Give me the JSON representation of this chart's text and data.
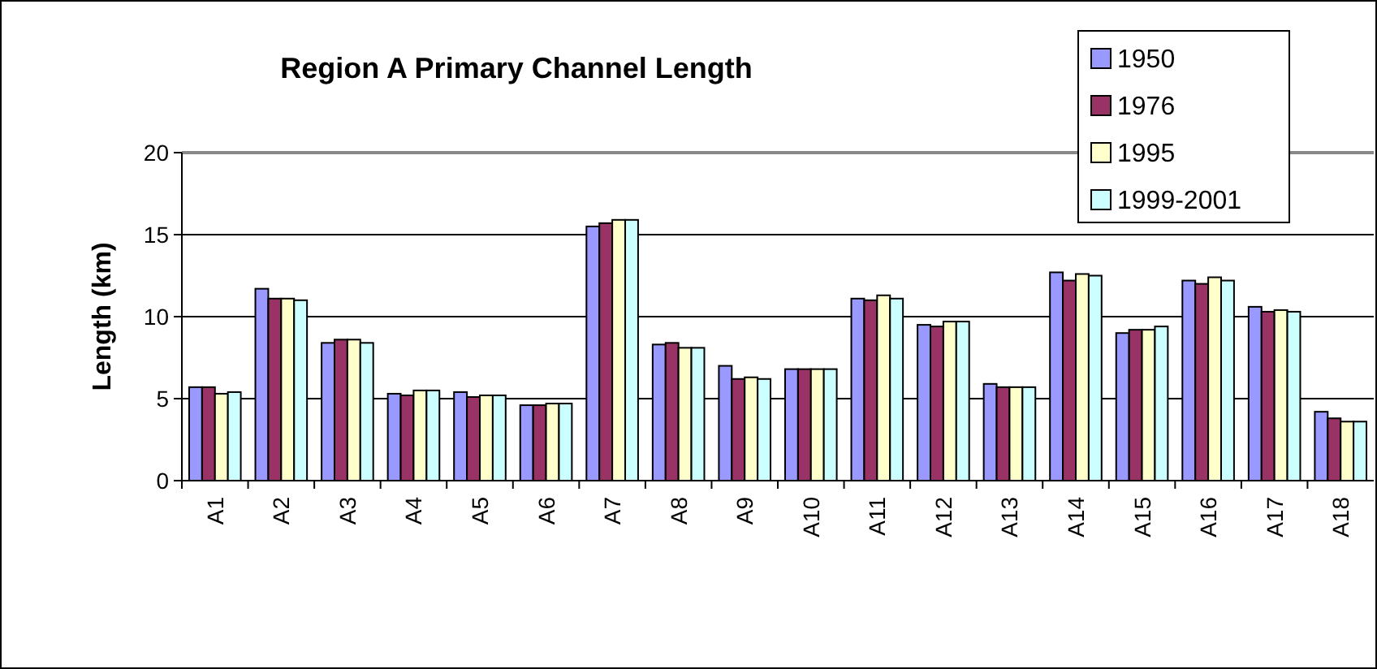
{
  "chart_data": {
    "type": "bar",
    "title": "Region A Primary Channel Length",
    "ylabel": "Length (km)",
    "categories": [
      "A1",
      "A2",
      "A3",
      "A4",
      "A5",
      "A6",
      "A7",
      "A8",
      "A9",
      "A10",
      "A11",
      "A12",
      "A13",
      "A14",
      "A15",
      "A16",
      "A17",
      "A18"
    ],
    "series": [
      {
        "name": "1950",
        "color": "#9999ff",
        "values": [
          5.7,
          11.7,
          8.4,
          5.3,
          5.4,
          4.6,
          15.5,
          8.3,
          7.0,
          6.8,
          11.1,
          9.5,
          5.9,
          12.7,
          9.0,
          12.2,
          10.6,
          4.2
        ]
      },
      {
        "name": "1976",
        "color": "#993366",
        "values": [
          5.7,
          11.1,
          8.6,
          5.2,
          5.1,
          4.6,
          15.7,
          8.4,
          6.2,
          6.8,
          11.0,
          9.4,
          5.7,
          12.2,
          9.2,
          12.0,
          10.3,
          3.8
        ]
      },
      {
        "name": "1995",
        "color": "#ffffcc",
        "values": [
          5.3,
          11.1,
          8.6,
          5.5,
          5.2,
          4.7,
          15.9,
          8.1,
          6.3,
          6.8,
          11.3,
          9.7,
          5.7,
          12.6,
          9.2,
          12.4,
          10.4,
          3.6
        ]
      },
      {
        "name": "1999-2001",
        "color": "#ccffff",
        "values": [
          5.4,
          11.0,
          8.4,
          5.5,
          5.2,
          4.7,
          15.9,
          8.1,
          6.2,
          6.8,
          11.1,
          9.7,
          5.7,
          12.5,
          9.4,
          12.2,
          10.3,
          3.6
        ]
      }
    ],
    "ylim": [
      0,
      20
    ],
    "yticks": [
      0,
      5,
      10,
      15,
      20
    ],
    "grid": "y",
    "legend": "top right"
  }
}
